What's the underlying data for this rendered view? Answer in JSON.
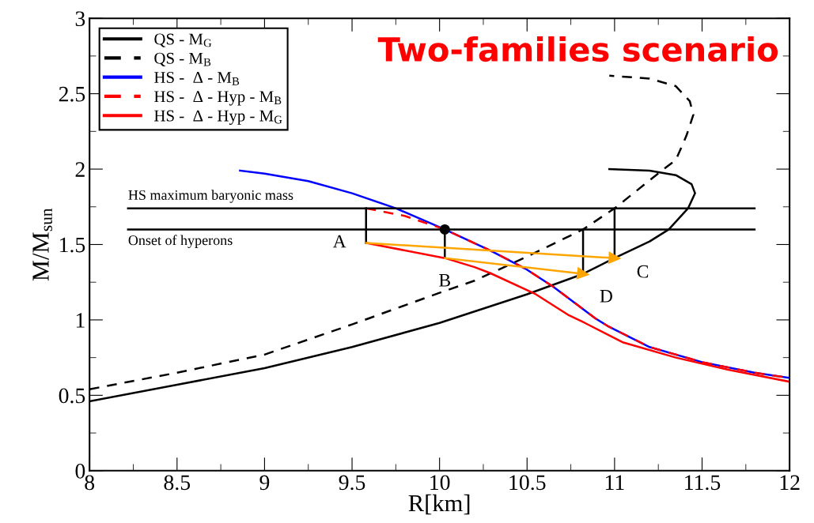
{
  "chart_data": {
    "type": "line",
    "title": "Two-families scenario",
    "xlabel": "R[km]",
    "ylabel": "M/M$_{sun}$",
    "xlim": [
      8,
      12
    ],
    "ylim": [
      0,
      3
    ],
    "xticks": [
      8,
      8.5,
      9,
      9.5,
      10,
      10.5,
      11,
      11.5,
      12
    ],
    "yticks": [
      0,
      0.5,
      1,
      1.5,
      2,
      2.5,
      3
    ],
    "grid": false,
    "legend": "top left",
    "series": [
      {
        "name": "QS - M$_{G}$",
        "color": "#000000",
        "line_style": "solid",
        "x": [
          8,
          8.5,
          9,
          9.5,
          10,
          10.5,
          10.82,
          11.0,
          11.2,
          11.31,
          11.42,
          11.46,
          11.44,
          11.35,
          11.2,
          10.97
        ],
        "values": [
          0.46,
          0.57,
          0.68,
          0.82,
          0.98,
          1.17,
          1.305,
          1.41,
          1.52,
          1.6,
          1.74,
          1.84,
          1.9,
          1.96,
          1.99,
          2.0
        ]
      },
      {
        "name": "QS - M$_{B}$",
        "color": "#000000",
        "line_style": "dashed",
        "x": [
          8,
          8.5,
          9,
          9.5,
          10,
          10.2,
          10.5,
          10.82,
          11.0,
          11.27,
          11.35,
          11.41,
          11.45,
          11.43,
          11.35,
          11.2,
          10.97
        ],
        "values": [
          0.54,
          0.65,
          0.77,
          0.97,
          1.18,
          1.26,
          1.42,
          1.6,
          1.74,
          1.99,
          2.06,
          2.22,
          2.36,
          2.45,
          2.55,
          2.6,
          2.62
        ]
      },
      {
        "name": "HS -  Δ - M$_{B}$",
        "color": "#0000ff",
        "line_style": "solid",
        "x": [
          8.86,
          9.0,
          9.25,
          9.5,
          9.75,
          10.03,
          10.29,
          10.49,
          10.65,
          10.89,
          10.96,
          11.2,
          11.5,
          11.8,
          12
        ],
        "values": [
          1.99,
          1.97,
          1.92,
          1.84,
          1.74,
          1.6,
          1.46,
          1.34,
          1.22,
          1.01,
          0.96,
          0.82,
          0.72,
          0.65,
          0.615
        ]
      },
      {
        "name": "HS -  Δ - Hyp - M$_{B}$",
        "color": "#ff0000",
        "line_style": "dashed",
        "x": [
          9.58,
          9.8,
          10.03,
          10.29,
          10.49,
          10.65,
          10.89,
          10.96,
          11.2,
          11.5,
          11.8,
          12
        ],
        "values": [
          1.74,
          1.69,
          1.6,
          1.46,
          1.34,
          1.22,
          1.01,
          0.96,
          0.82,
          0.72,
          0.65,
          0.615
        ]
      },
      {
        "name": "HS -  Δ - Hyp - M$_{G}$",
        "color": "#ff0000",
        "line_style": "solid",
        "x": [
          9.58,
          10.03,
          10.2,
          10.29,
          10.55,
          10.74,
          10.83,
          11.05,
          11.35,
          11.65,
          12
        ],
        "values": [
          1.51,
          1.41,
          1.35,
          1.31,
          1.17,
          1.03,
          0.98,
          0.85,
          0.75,
          0.67,
          0.59
        ]
      },
      {
        "color": "#000000",
        "line_style": "solid",
        "x": [
          8.22,
          11.8
        ],
        "values": [
          1.74,
          1.74
        ]
      },
      {
        "color": "#000000",
        "line_style": "solid",
        "x": [
          8.22,
          11.8
        ],
        "values": [
          1.6,
          1.6
        ]
      },
      {
        "color": "#000000",
        "line_style": "solid",
        "x": [
          9.58,
          9.58
        ],
        "values": [
          1.51,
          1.74
        ]
      },
      {
        "color": "#000000",
        "line_style": "solid",
        "x": [
          10.03,
          10.03
        ],
        "values": [
          1.41,
          1.6
        ]
      },
      {
        "color": "#000000",
        "line_style": "solid",
        "x": [
          10.82,
          10.82
        ],
        "values": [
          1.305,
          1.6
        ]
      },
      {
        "color": "#000000",
        "line_style": "solid",
        "x": [
          11.0,
          11.0
        ],
        "values": [
          1.41,
          1.74
        ]
      },
      {
        "color": "#ffa500",
        "line_style": "solid",
        "marker": "triangle",
        "x": [
          9.58,
          11.0
        ],
        "values": [
          1.51,
          1.41
        ]
      },
      {
        "color": "#ffa500",
        "line_style": "solid",
        "marker": "triangle",
        "x": [
          10.03,
          10.82
        ],
        "values": [
          1.41,
          1.305
        ]
      },
      {
        "type": "scatter",
        "color": "#000000",
        "marker": "circle",
        "x": [
          10.03
        ],
        "values": [
          1.6
        ]
      }
    ],
    "annotations": [
      {
        "text": "HS maximum baryonic mass",
        "x": 8.22,
        "y": 1.74
      },
      {
        "text": "Onset of hyperons",
        "x": 8.22,
        "y": 1.6
      },
      {
        "text": "A",
        "x": 9.58,
        "y": 1.51
      },
      {
        "text": "B",
        "x": 10.03,
        "y": 1.41
      },
      {
        "text": "C",
        "x": 11.0,
        "y": 1.41
      },
      {
        "text": "D",
        "x": 10.82,
        "y": 1.305
      }
    ]
  }
}
